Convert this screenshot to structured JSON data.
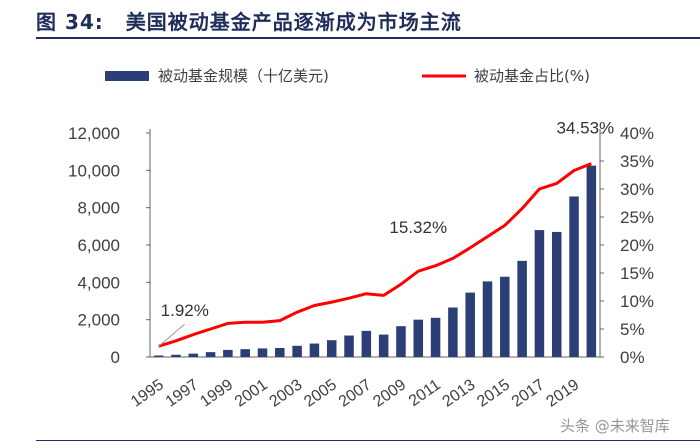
{
  "figure": {
    "label": "图 34:",
    "title": "美国被动基金产品逐渐成为市场主流"
  },
  "colors": {
    "bar": "#2b3e75",
    "line": "#ff0000",
    "title": "#1f2d5a",
    "axis_text": "#404040"
  },
  "watermark": "头条 @未来智库",
  "chart_data": {
    "type": "bar+line",
    "title": "美国被动基金产品逐渐成为市场主流",
    "categories": [
      "1995",
      "1996",
      "1997",
      "1998",
      "1999",
      "2000",
      "2001",
      "2002",
      "2003",
      "2004",
      "2005",
      "2006",
      "2007",
      "2008",
      "2009",
      "2010",
      "2011",
      "2012",
      "2013",
      "2014",
      "2015",
      "2016",
      "2017",
      "2018",
      "2019",
      "2020"
    ],
    "x_tick_labels": [
      "1995",
      "1997",
      "1999",
      "2001",
      "2003",
      "2005",
      "2007",
      "2009",
      "2011",
      "2013",
      "2015",
      "2017",
      "2019"
    ],
    "series": [
      {
        "name": "被动基金规模（十亿美元)",
        "type": "bar",
        "axis": "left",
        "values": [
          80,
          120,
          180,
          260,
          380,
          420,
          460,
          480,
          600,
          720,
          900,
          1150,
          1400,
          1200,
          1650,
          2000,
          2100,
          2650,
          3450,
          4050,
          4300,
          5150,
          6800,
          6700,
          8600,
          10250
        ]
      },
      {
        "name": "被动基金占比(%)",
        "type": "line",
        "axis": "right",
        "values": [
          1.92,
          2.9,
          4.0,
          5.0,
          6.0,
          6.2,
          6.2,
          6.5,
          8.0,
          9.2,
          9.8,
          10.5,
          11.3,
          11.0,
          13.0,
          15.32,
          16.3,
          17.6,
          19.5,
          21.5,
          23.5,
          26.5,
          30.0,
          31.0,
          33.3,
          34.53
        ]
      }
    ],
    "y_left": {
      "ticks": [
        "0",
        "2,000",
        "4,000",
        "6,000",
        "8,000",
        "10,000",
        "12,000"
      ],
      "min": 0,
      "max": 12000,
      "step": 2000
    },
    "y_right": {
      "ticks": [
        "0%",
        "5%",
        "10%",
        "15%",
        "20%",
        "25%",
        "30%",
        "35%",
        "40%"
      ],
      "min": 0,
      "max": 40,
      "step": 5
    },
    "annotations": [
      {
        "text": "1.92%",
        "category": "1995"
      },
      {
        "text": "15.32%",
        "category": "2010"
      },
      {
        "text": "34.53%",
        "category": "2020"
      }
    ],
    "legend_position": "top",
    "grid": false
  }
}
